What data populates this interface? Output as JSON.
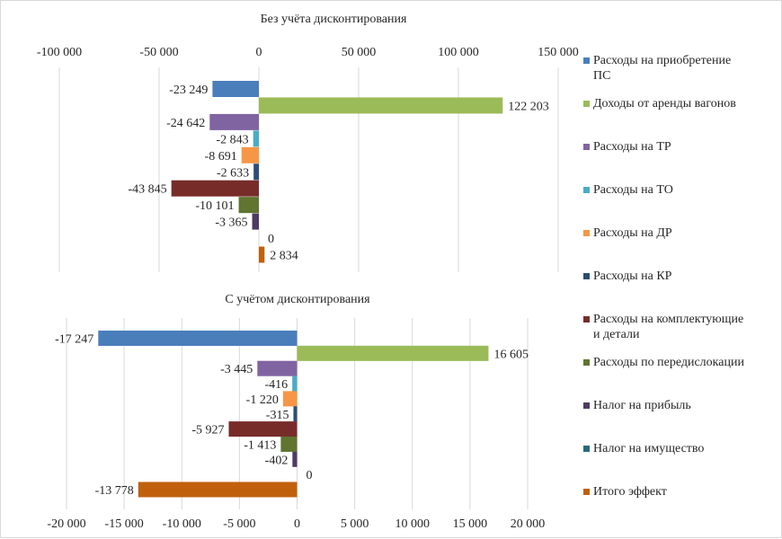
{
  "chart_data": [
    {
      "type": "bar",
      "orientation": "horizontal",
      "title": "Без учёта дисконтирования",
      "xlim": [
        -100000,
        150000
      ],
      "x_ticks": [
        -100000,
        -50000,
        0,
        50000,
        100000,
        150000
      ],
      "x_tick_labels": [
        "-100 000",
        "-50 000",
        "0",
        "50 000",
        "100 000",
        "150 000"
      ],
      "axis_position": "top",
      "grid": true,
      "values": [
        -23249,
        122203,
        -24642,
        -2843,
        -8691,
        -2633,
        -43845,
        -10101,
        -3365,
        0,
        2834
      ],
      "value_labels": [
        "-23 249",
        "122 203",
        "-24 642",
        "-2 843",
        "-8 691",
        "-2 633",
        "-43 845",
        "-10 101",
        "-3 365",
        "0",
        "2 834"
      ]
    },
    {
      "type": "bar",
      "orientation": "horizontal",
      "title": "С учётом дисконтирования",
      "xlim": [
        -20000,
        20000
      ],
      "x_ticks": [
        -20000,
        -15000,
        -10000,
        -5000,
        0,
        5000,
        10000,
        15000,
        20000
      ],
      "x_tick_labels": [
        "-20 000",
        "-15 000",
        "-10 000",
        "-5 000",
        "0",
        "5 000",
        "10 000",
        "15 000",
        "20 000"
      ],
      "axis_position": "bottom",
      "grid": true,
      "values": [
        -17247,
        16605,
        -3445,
        -416,
        -1220,
        -315,
        -5927,
        -1413,
        -402,
        0,
        -13778
      ],
      "value_labels": [
        "-17 247",
        "16 605",
        "-3 445",
        "-416",
        "-1 220",
        "-315",
        "-5 927",
        "-1 413",
        "-402",
        "0",
        "-13 778"
      ]
    }
  ],
  "series": [
    {
      "name": "Расходы на приобретение ПС",
      "color": "#4a7ebb"
    },
    {
      "name": "Доходы от аренды вагонов",
      "color": "#9bbb59"
    },
    {
      "name": "Расходы на ТР",
      "color": "#8064a2"
    },
    {
      "name": "Расходы на ТО",
      "color": "#4bacc6"
    },
    {
      "name": "Расходы на ДР",
      "color": "#f79646"
    },
    {
      "name": "Расходы на КР",
      "color": "#2c4d75"
    },
    {
      "name": "Расходы на комплектующие и детали",
      "color": "#772c2a"
    },
    {
      "name": "Расходы по передислокации",
      "color": "#5f7530"
    },
    {
      "name": "Налог на прибыль",
      "color": "#4d3b62"
    },
    {
      "name": "Налог на имущество",
      "color": "#276a7c"
    },
    {
      "name": "Итого эффект",
      "color": "#c0600d"
    }
  ],
  "legend": {
    "position": "right",
    "items": [
      {
        "label_line1": "Расходы на приобретение",
        "label_line2": "ПС"
      },
      {
        "label_line1": "Доходы от аренды вагонов",
        "label_line2": ""
      },
      {
        "label_line1": "Расходы на ТР",
        "label_line2": ""
      },
      {
        "label_line1": "Расходы на ТО",
        "label_line2": ""
      },
      {
        "label_line1": "Расходы на ДР",
        "label_line2": ""
      },
      {
        "label_line1": "Расходы на КР",
        "label_line2": ""
      },
      {
        "label_line1": "Расходы на комплектующие",
        "label_line2": "и детали"
      },
      {
        "label_line1": "Расходы по передислокации",
        "label_line2": ""
      },
      {
        "label_line1": "Налог на прибыль",
        "label_line2": ""
      },
      {
        "label_line1": "Налог на имущество",
        "label_line2": ""
      },
      {
        "label_line1": "Итого эффект",
        "label_line2": ""
      }
    ]
  }
}
